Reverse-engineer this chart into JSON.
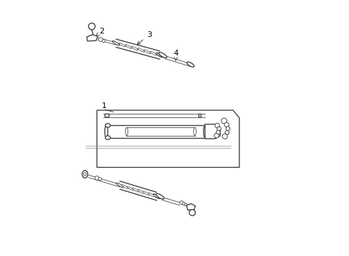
{
  "bg_color": "#ffffff",
  "line_color": "#444444",
  "line_width": 1.0,
  "thin_line": 0.6,
  "label_color": "#000000",
  "label_fontsize": 8,
  "fig_width": 4.9,
  "fig_height": 3.6,
  "dpi": 100
}
